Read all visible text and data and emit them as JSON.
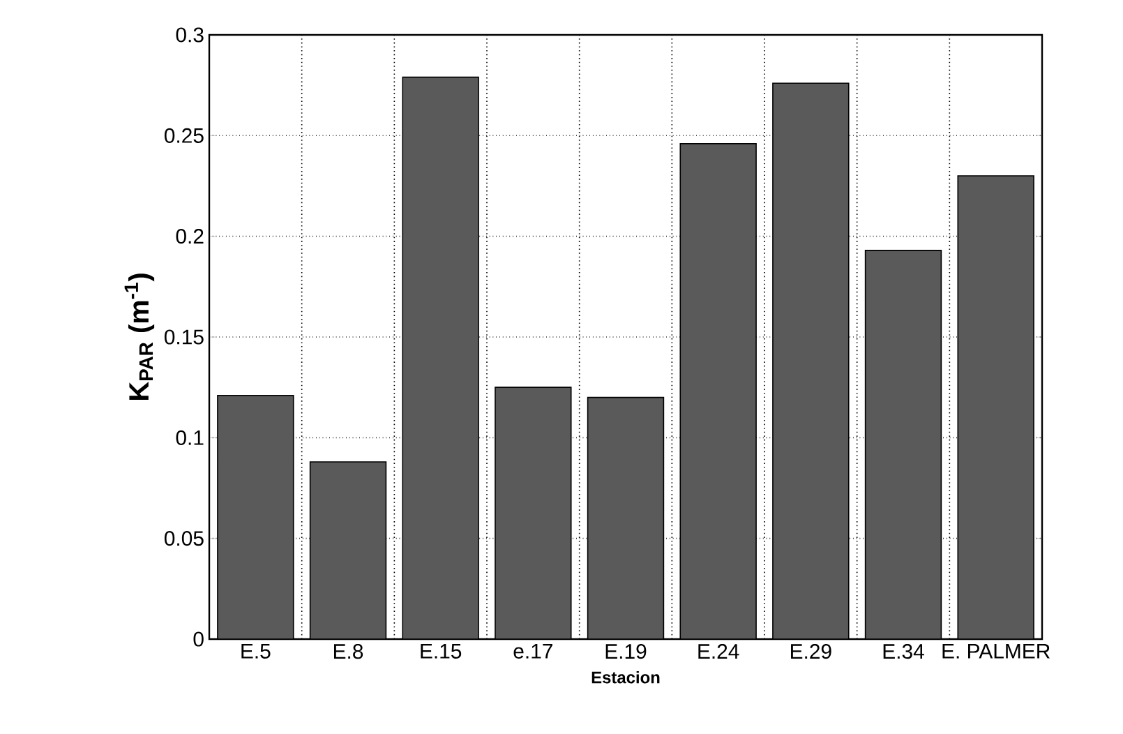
{
  "chart_data": {
    "type": "bar",
    "xlabel": "Estacion",
    "ylabel": "K$_{PAR}$ (m$^{-1}$)",
    "categories": [
      "E.5",
      "E.8",
      "E.15",
      "e.17",
      "E.19",
      "E.24",
      "E.29",
      "E.34",
      "E. PALMER"
    ],
    "values": [
      0.121,
      0.088,
      0.279,
      0.125,
      0.12,
      0.246,
      0.276,
      0.193,
      0.23
    ],
    "color": "#5a5a5a",
    "ylim": [
      0,
      0.3
    ],
    "yticks": [
      0,
      0.05,
      0.1,
      0.15,
      0.2,
      0.25,
      0.3
    ],
    "grid": true
  }
}
